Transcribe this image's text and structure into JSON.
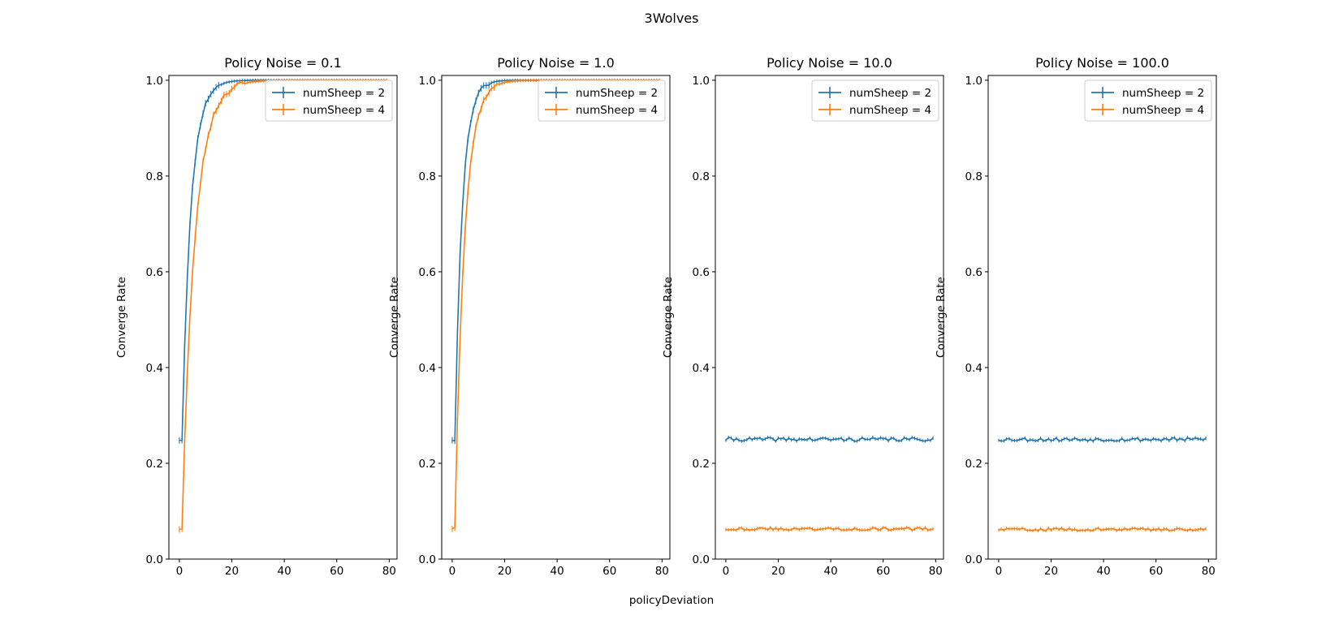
{
  "figure": {
    "suptitle": "3Wolves",
    "supxlabel": "policyDeviation"
  },
  "colors": {
    "numSheep2": "#1f77b4",
    "numSheep4": "#ff7f0e",
    "axes": "#000000"
  },
  "chart_data": [
    {
      "type": "line",
      "title": "Policy Noise = 0.1",
      "xlabel": "",
      "ylabel": "Converge Rate",
      "xlim": [
        -4,
        83
      ],
      "ylim": [
        0,
        1.01
      ],
      "xticks": [
        0,
        20,
        40,
        60,
        80
      ],
      "yticks": [
        0.0,
        0.2,
        0.4,
        0.6,
        0.8,
        1.0
      ],
      "legend": "top-right",
      "series": [
        {
          "name": "numSheep = 2",
          "profile": "converge",
          "start": 0.25,
          "rate": 0.3,
          "noise": 0.004,
          "seed": 11
        },
        {
          "name": "numSheep = 4",
          "profile": "converge",
          "start": 0.065,
          "rate": 0.21,
          "noise": 0.006,
          "seed": 23
        }
      ]
    },
    {
      "type": "line",
      "title": "Policy Noise = 1.0",
      "xlabel": "",
      "ylabel": "Converge Rate",
      "xlim": [
        -4,
        83
      ],
      "ylim": [
        0,
        1.01
      ],
      "xticks": [
        0,
        20,
        40,
        60,
        80
      ],
      "yticks": [
        0.0,
        0.2,
        0.4,
        0.6,
        0.8,
        1.0
      ],
      "legend": "top-right",
      "series": [
        {
          "name": "numSheep = 2",
          "profile": "converge",
          "start": 0.25,
          "rate": 0.36,
          "noise": 0.004,
          "seed": 31
        },
        {
          "name": "numSheep = 4",
          "profile": "converge",
          "start": 0.065,
          "rate": 0.28,
          "noise": 0.004,
          "seed": 37
        }
      ]
    },
    {
      "type": "line",
      "title": "Policy Noise = 10.0",
      "xlabel": "",
      "ylabel": "Converge Rate",
      "xlim": [
        -4,
        83
      ],
      "ylim": [
        0,
        1.01
      ],
      "xticks": [
        0,
        20,
        40,
        60,
        80
      ],
      "yticks": [
        0.0,
        0.2,
        0.4,
        0.6,
        0.8,
        1.0
      ],
      "legend": "top-right",
      "series": [
        {
          "name": "numSheep = 2",
          "profile": "flat",
          "start": 0.25,
          "noise": 0.004,
          "seed": 41
        },
        {
          "name": "numSheep = 4",
          "profile": "flat",
          "start": 0.063,
          "noise": 0.003,
          "seed": 43
        }
      ]
    },
    {
      "type": "line",
      "title": "Policy Noise = 100.0",
      "xlabel": "",
      "ylabel": "Converge Rate",
      "xlim": [
        -4,
        83
      ],
      "ylim": [
        0,
        1.01
      ],
      "xticks": [
        0,
        20,
        40,
        60,
        80
      ],
      "yticks": [
        0.0,
        0.2,
        0.4,
        0.6,
        0.8,
        1.0
      ],
      "legend": "top-right",
      "series": [
        {
          "name": "numSheep = 2",
          "profile": "flat",
          "start": 0.25,
          "noise": 0.004,
          "seed": 53
        },
        {
          "name": "numSheep = 4",
          "profile": "flat",
          "start": 0.062,
          "noise": 0.003,
          "seed": 59
        }
      ]
    }
  ]
}
